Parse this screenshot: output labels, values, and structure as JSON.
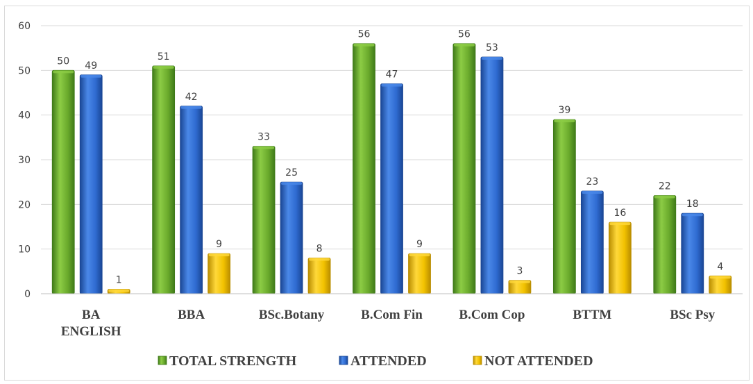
{
  "chart_data": {
    "type": "bar",
    "categories": [
      [
        "BA",
        "ENGLISH"
      ],
      [
        "BBA"
      ],
      [
        "BSc.Botany"
      ],
      [
        "B.Com Fin"
      ],
      [
        "B.Com Cop"
      ],
      [
        "BTTM"
      ],
      [
        "BSc Psy"
      ]
    ],
    "series": [
      {
        "name": "TOTAL STRENGTH",
        "values": [
          50,
          51,
          33,
          56,
          56,
          39,
          22
        ],
        "color": "#6aaa2c",
        "light": "#8ccc45",
        "dark": "#3f7a19"
      },
      {
        "name": "ATTENDED",
        "values": [
          49,
          42,
          25,
          47,
          53,
          23,
          18
        ],
        "color": "#2f6bd1",
        "light": "#4a88e8",
        "dark": "#1a4694"
      },
      {
        "name": "NOT ATTENDED",
        "values": [
          1,
          9,
          8,
          9,
          3,
          16,
          4
        ],
        "color": "#f2c200",
        "light": "#ffd83a",
        "dark": "#b98d00"
      }
    ],
    "ylim": [
      0,
      60
    ],
    "yticks": [
      0,
      10,
      20,
      30,
      40,
      50,
      60
    ],
    "grid": true,
    "legend": "bottom",
    "title": "",
    "xlabel": "",
    "ylabel": ""
  }
}
